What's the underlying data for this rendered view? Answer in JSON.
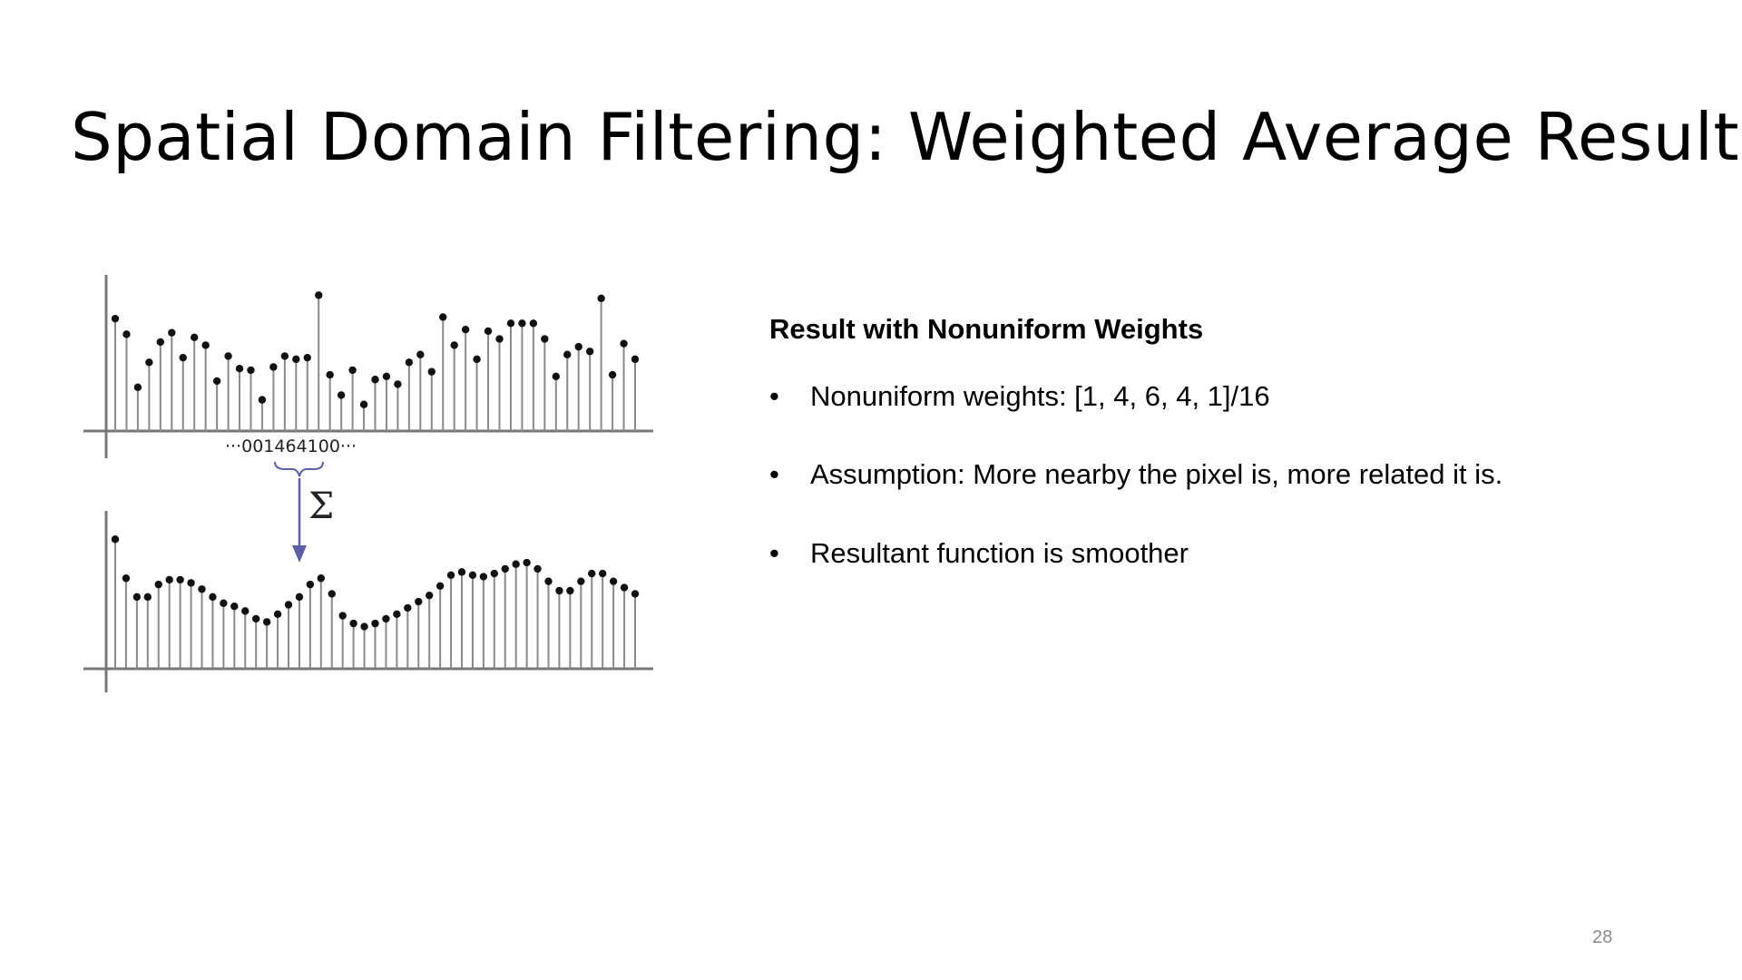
{
  "slide": {
    "title": "Spatial Domain Filtering: Weighted Average Result",
    "page_number": "28"
  },
  "content": {
    "heading": "Result with Nonuniform Weights",
    "bullets": [
      "Nonuniform weights: [1, 4, 6, 4, 1]/16",
      "Assumption: More nearby the pixel is, more related it is.",
      "Resultant function is smoother"
    ]
  },
  "figure": {
    "kernel_label": "···001464100···",
    "sigma_label": "Σ",
    "original_signal": [
      0.72,
      0.62,
      0.28,
      0.44,
      0.57,
      0.63,
      0.47,
      0.6,
      0.55,
      0.32,
      0.48,
      0.4,
      0.39,
      0.2,
      0.41,
      0.48,
      0.46,
      0.47,
      0.87,
      0.36,
      0.23,
      0.39,
      0.17,
      0.33,
      0.35,
      0.3,
      0.44,
      0.49,
      0.38,
      0.73,
      0.55,
      0.65,
      0.46,
      0.64,
      0.59,
      0.69,
      0.69,
      0.69,
      0.59,
      0.35,
      0.49,
      0.54,
      0.51,
      0.85,
      0.36,
      0.56,
      0.46
    ],
    "filtered_signal": [
      0.83,
      0.58,
      0.46,
      0.46,
      0.54,
      0.57,
      0.57,
      0.55,
      0.51,
      0.46,
      0.42,
      0.4,
      0.37,
      0.32,
      0.3,
      0.35,
      0.41,
      0.46,
      0.54,
      0.58,
      0.48,
      0.34,
      0.29,
      0.27,
      0.29,
      0.32,
      0.35,
      0.39,
      0.43,
      0.47,
      0.53,
      0.6,
      0.62,
      0.6,
      0.59,
      0.61,
      0.64,
      0.67,
      0.68,
      0.64,
      0.56,
      0.5,
      0.5,
      0.56,
      0.61,
      0.61,
      0.56,
      0.52,
      0.48
    ]
  }
}
